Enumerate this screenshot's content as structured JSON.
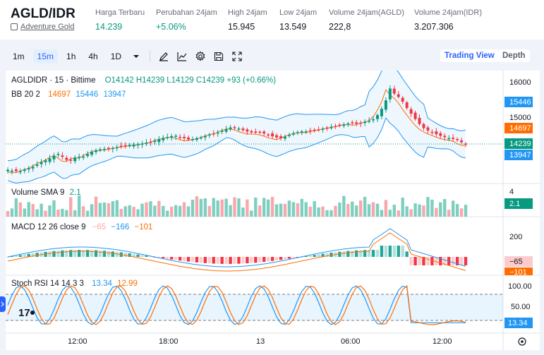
{
  "header": {
    "pair": "AGLD/IDR",
    "name": "Adventure Gold",
    "stats": [
      {
        "label": "Harga Terbaru",
        "value": "14.239",
        "color": "green"
      },
      {
        "label": "Perubahan 24jam",
        "value": "+5.06%",
        "color": "green"
      },
      {
        "label": "High 24jam",
        "value": "15.945",
        "color": ""
      },
      {
        "label": "Low 24jam",
        "value": "13.549",
        "color": ""
      },
      {
        "label": "Volume 24jam(AGLD)",
        "value": "222,8",
        "color": ""
      },
      {
        "label": "Volume 24jam(IDR)",
        "value": "3.207.306",
        "color": ""
      }
    ]
  },
  "toolbar": {
    "timeframes": [
      "1m",
      "15m",
      "1h",
      "4h",
      "1D"
    ],
    "active": "15m",
    "icons": [
      "chevron-down-icon",
      "pencil-icon",
      "line-chart-icon",
      "gear-icon",
      "save-icon",
      "fullscreen-icon"
    ],
    "trading_view": "Trading View",
    "depth": "Depth"
  },
  "chart": {
    "legend": {
      "symbol": "AGLDIDR · 15 · Bittime",
      "ohlc": "O14142 H14239 L14129 C14239 +93 (+0.66%)",
      "bb_label": "BB 20 2",
      "bb_basis": "14697",
      "bb_upper": "15446",
      "bb_lower": "13947"
    },
    "price_axis": [
      "16000",
      "15000"
    ],
    "price_badges": {
      "upper": "15446",
      "basis": "14697",
      "last": "14239",
      "lower": "13947"
    },
    "volume": {
      "label": "Volume SMA 9",
      "value": "2.1",
      "axis": "4",
      "badge": "2.1"
    },
    "macd": {
      "label": "MACD 12 26 close 9",
      "hist": "−65",
      "macd": "−166",
      "signal": "−101",
      "axis": "200",
      "badge1": "−65",
      "badge2": "−101"
    },
    "stoch": {
      "label": "Stoch RSI 14 14 3 3",
      "k": "13.34",
      "d": "12.99",
      "axis": [
        "100.00",
        "50.00"
      ],
      "badge": "13.34"
    },
    "time_axis": [
      "12:00",
      "18:00",
      "13",
      "06:00",
      "12:00"
    ],
    "logo": "17",
    "colors": {
      "up": "#089981",
      "down": "#f23645",
      "bb": "#2196f3",
      "basis": "#ff6d00",
      "k": "#2196f3",
      "d": "#ff6d00"
    }
  }
}
